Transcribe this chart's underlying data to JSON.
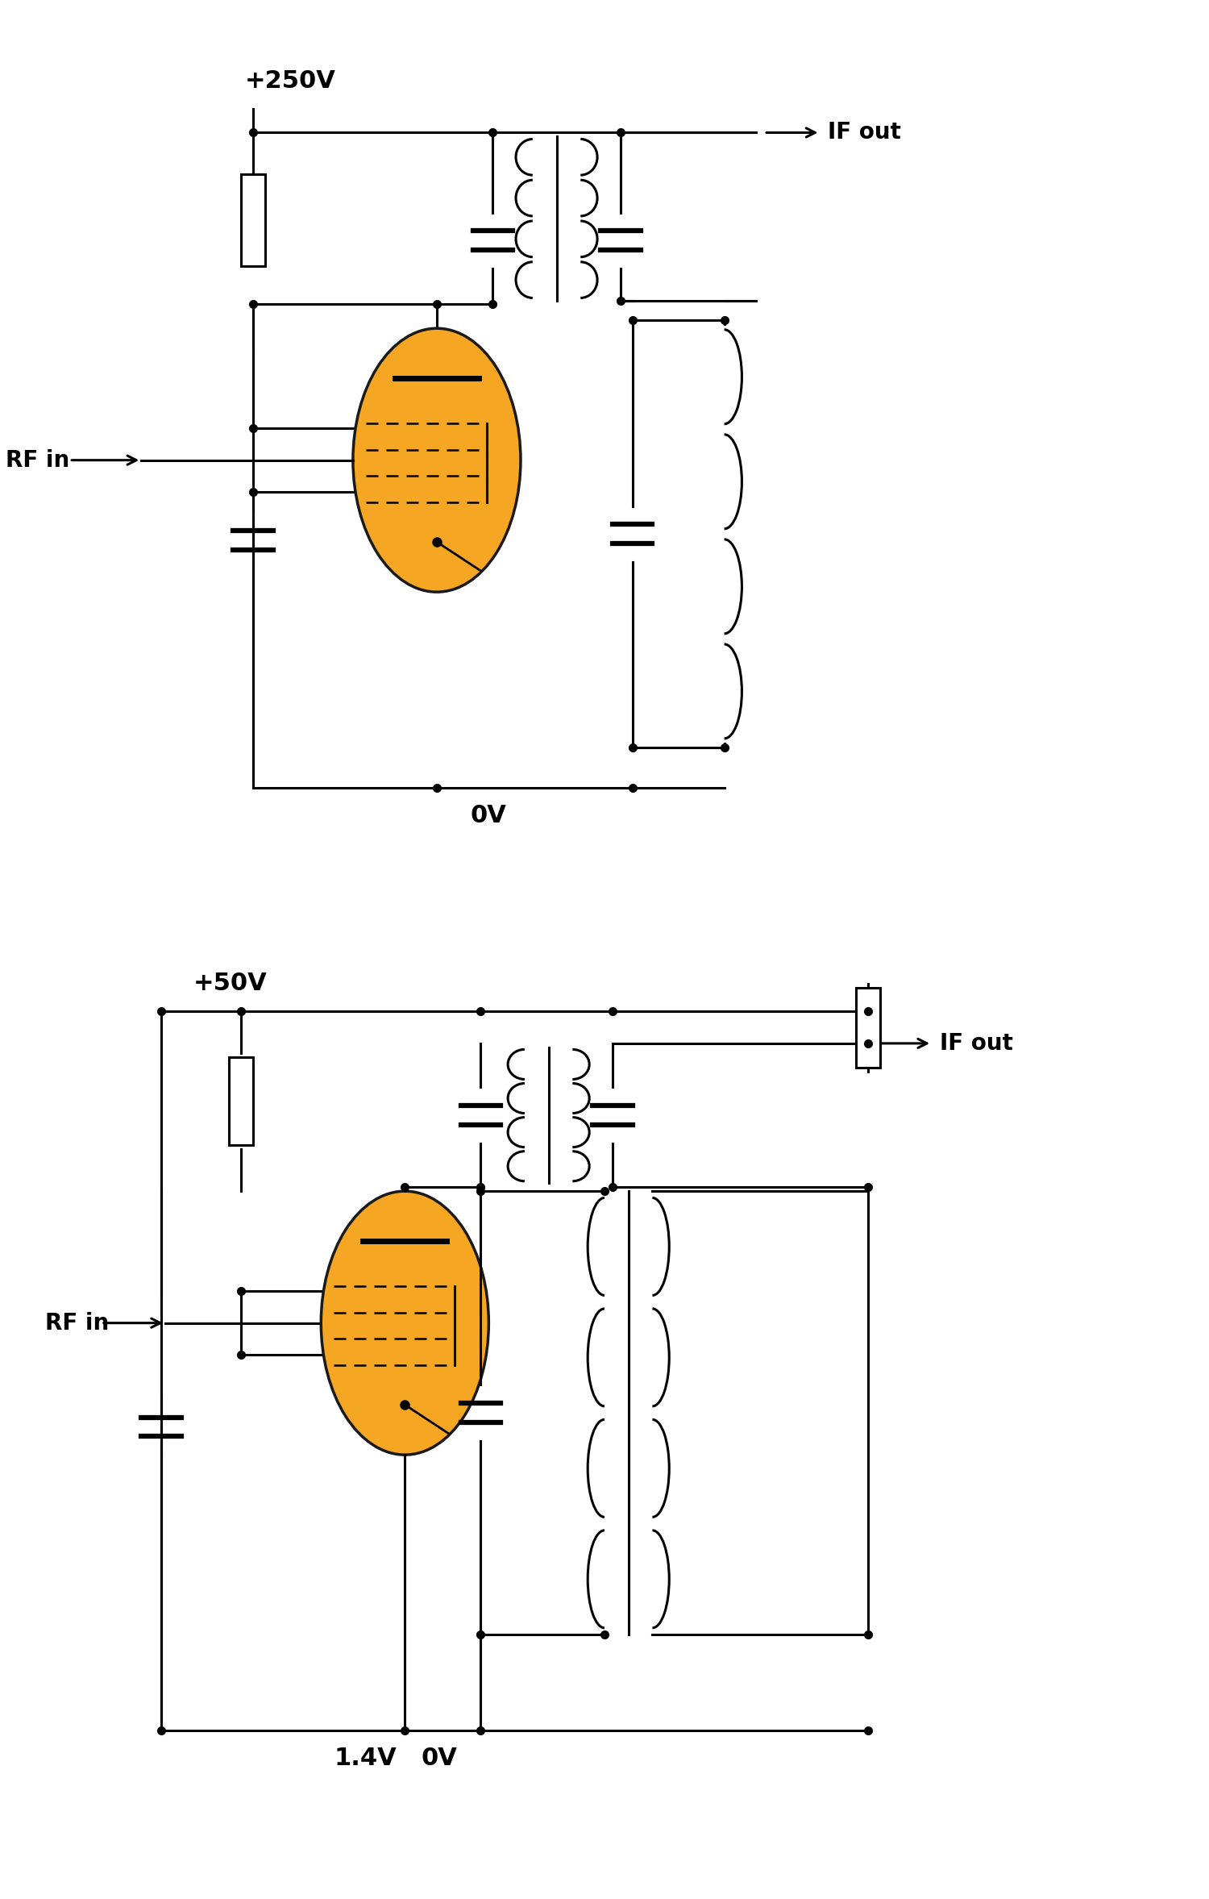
{
  "bg_color": "#ffffff",
  "tube_color": "#f5a623",
  "tube_border": "#1a1a1a",
  "lw": 2.2,
  "lw_thick": 4.5,
  "dot_size": 7,
  "font_label": 20,
  "font_title": 22,
  "c1": {
    "vcc_label": "+250V",
    "gnd_label": "0V",
    "rf_label": "RF in",
    "if_label": "IF out"
  },
  "c2": {
    "vcc_label": "+50V",
    "gnd_label": "0V",
    "v14_label": "1.4V",
    "rf_label": "RF in",
    "if_label": "IF out"
  }
}
